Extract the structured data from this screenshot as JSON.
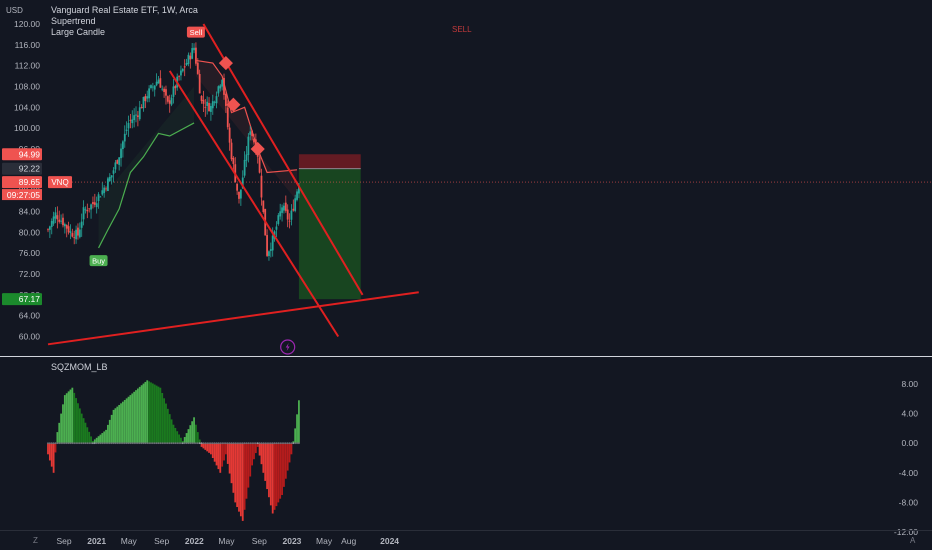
{
  "currency": "USD",
  "legend": {
    "symbol_line": "Vanguard Real Estate ETF, 1W, Arca",
    "indicator_1": "Supertrend",
    "indicator_2": "Large Candle"
  },
  "oscillator": {
    "title": "SQZMOM_LB"
  },
  "corner_left": "Z",
  "corner_right": "A",
  "colors": {
    "background": "#131722",
    "up": "#26a69a",
    "down": "#ef5350",
    "trendline": "#e02020",
    "supertrend_up": "#4caf50",
    "supertrend_down": "#ef5350",
    "target_zone": "#1b5e20",
    "stop_zone": "#7f1d24",
    "mom_strong_up": "#4caf50",
    "mom_weak_up": "#1b7a1f",
    "mom_strong_down": "#b71c1c",
    "mom_weak_down": "#e53935"
  },
  "icons": {
    "bolt": "lightning-bolt-icon"
  },
  "chart_data": [
    {
      "type": "candlestick",
      "title": "Vanguard Real Estate ETF, 1W, Arca",
      "ylabel": "USD",
      "ylim": [
        58,
        122
      ],
      "y_ticks": [
        "120.00",
        "116.00",
        "112.00",
        "108.00",
        "104.00",
        "100.00",
        "96.00",
        "92.00",
        "88.00",
        "84.00",
        "80.00",
        "76.00",
        "72.00",
        "68.00",
        "64.00",
        "60.00"
      ],
      "x_ticks": [
        "Sep",
        "2021",
        "May",
        "Sep",
        "2022",
        "May",
        "Sep",
        "2023",
        "May",
        "Aug",
        "2024"
      ],
      "close_path": [
        {
          "date": "2020-07-03",
          "close": 80.5
        },
        {
          "date": "2020-07-31",
          "close": 83.5
        },
        {
          "date": "2020-08-28",
          "close": 82.0
        },
        {
          "date": "2020-09-25",
          "close": 80.0
        },
        {
          "date": "2020-10-23",
          "close": 79.5
        },
        {
          "date": "2020-11-13",
          "close": 84.0
        },
        {
          "date": "2020-12-18",
          "close": 85.5
        },
        {
          "date": "2021-01-22",
          "close": 88.0
        },
        {
          "date": "2021-02-26",
          "close": 91.0
        },
        {
          "date": "2021-03-26",
          "close": 95.0
        },
        {
          "date": "2021-04-30",
          "close": 101.0
        },
        {
          "date": "2021-06-04",
          "close": 103.0
        },
        {
          "date": "2021-07-09",
          "close": 106.5
        },
        {
          "date": "2021-08-20",
          "close": 109.5
        },
        {
          "date": "2021-09-24",
          "close": 104.5
        },
        {
          "date": "2021-10-29",
          "close": 109.0
        },
        {
          "date": "2021-12-31",
          "close": 115.5
        },
        {
          "date": "2022-01-28",
          "close": 105.0
        },
        {
          "date": "2022-03-04",
          "close": 104.0
        },
        {
          "date": "2022-04-15",
          "close": 110.0
        },
        {
          "date": "2022-05-13",
          "close": 97.0
        },
        {
          "date": "2022-06-17",
          "close": 86.0
        },
        {
          "date": "2022-07-29",
          "close": 100.0
        },
        {
          "date": "2022-08-26",
          "close": 95.0
        },
        {
          "date": "2022-09-30",
          "close": 76.0
        },
        {
          "date": "2022-10-21",
          "close": 78.5
        },
        {
          "date": "2022-11-25",
          "close": 85.0
        },
        {
          "date": "2022-12-23",
          "close": 82.0
        },
        {
          "date": "2023-01-27",
          "close": 89.65
        }
      ],
      "last_price": {
        "symbol": "VNQ",
        "price": "89.65",
        "countdown": "09:27:05"
      },
      "price_labels": {
        "stop": "94.99",
        "entry": "92.22",
        "target": "67.17"
      },
      "position": {
        "entry": 92.22,
        "stop": 94.99,
        "target": 67.17,
        "start_date": "2023-01-27",
        "end_date": "2023-09-15"
      },
      "trendlines": [
        {
          "points": [
            {
              "date": "2021-10-01",
              "price": 111.0
            },
            {
              "date": "2023-06-23",
              "price": 60.0
            }
          ]
        },
        {
          "points": [
            {
              "date": "2022-02-04",
              "price": 120.0
            },
            {
              "date": "2023-09-22",
              "price": 68.0
            }
          ]
        },
        {
          "points": [
            {
              "date": "2020-07-03",
              "price": 58.5
            },
            {
              "date": "2024-04-19",
              "price": 68.5
            }
          ]
        }
      ],
      "supertrend": [
        {
          "date": "2021-01-08",
          "price": 77.0
        },
        {
          "date": "2021-02-12",
          "price": 80.5
        },
        {
          "date": "2021-03-26",
          "price": 84.5
        },
        {
          "date": "2021-05-07",
          "price": 91.5
        },
        {
          "date": "2021-06-25",
          "price": 94.5
        },
        {
          "date": "2021-08-20",
          "price": 99.0
        },
        {
          "date": "2021-10-01",
          "price": 98.5
        },
        {
          "date": "2021-12-31",
          "price": 101.0
        },
        {
          "date": "2022-01-07",
          "price": 113.0
        },
        {
          "date": "2022-03-11",
          "price": 112.5
        },
        {
          "date": "2022-04-15",
          "price": 110.0
        },
        {
          "date": "2022-05-20",
          "price": 103.0
        },
        {
          "date": "2022-07-08",
          "price": 104.0
        },
        {
          "date": "2022-08-26",
          "price": 96.0
        },
        {
          "date": "2022-09-30",
          "price": 91.5
        },
        {
          "date": "2023-01-20",
          "price": 92.0
        }
      ],
      "signals": [
        {
          "label": "Buy",
          "date": "2021-01-08",
          "price": 76.0
        },
        {
          "label": "Sell",
          "date": "2022-01-07",
          "price": 117.0
        }
      ],
      "sell_markers": [
        {
          "date": "2022-04-29",
          "price": 112.5
        },
        {
          "date": "2022-05-27",
          "price": 104.5
        },
        {
          "date": "2022-08-26",
          "price": 96.0
        }
      ],
      "annotation": "SELL",
      "annotation_position": "above",
      "grid": false
    },
    {
      "type": "bar",
      "title": "SQZMOM_LB",
      "ylim": [
        -12,
        10
      ],
      "y_ticks": [
        "8.00",
        "4.00",
        "0.00",
        "-4.00",
        "-8.00",
        "-12.00"
      ],
      "x_range": [
        "2020-07-03",
        "2023-02-03"
      ],
      "momentum_shape": [
        {
          "date": "2020-07-03",
          "value": -1.5
        },
        {
          "date": "2020-07-24",
          "value": -4.0
        },
        {
          "date": "2020-08-07",
          "value": 1.5
        },
        {
          "date": "2020-09-04",
          "value": 6.5
        },
        {
          "date": "2020-10-02",
          "value": 7.5
        },
        {
          "date": "2020-11-06",
          "value": 4.0
        },
        {
          "date": "2020-12-18",
          "value": 0.3
        },
        {
          "date": "2021-02-05",
          "value": 1.8
        },
        {
          "date": "2021-03-05",
          "value": 4.5
        },
        {
          "date": "2021-05-07",
          "value": 6.5
        },
        {
          "date": "2021-07-09",
          "value": 8.5
        },
        {
          "date": "2021-08-27",
          "value": 7.5
        },
        {
          "date": "2021-10-15",
          "value": 2.5
        },
        {
          "date": "2021-11-19",
          "value": 0.3
        },
        {
          "date": "2021-12-31",
          "value": 3.5
        },
        {
          "date": "2022-01-28",
          "value": -0.5
        },
        {
          "date": "2022-03-04",
          "value": -1.5
        },
        {
          "date": "2022-04-08",
          "value": -4.0
        },
        {
          "date": "2022-04-29",
          "value": -1.5
        },
        {
          "date": "2022-06-03",
          "value": -8.0
        },
        {
          "date": "2022-07-01",
          "value": -10.5
        },
        {
          "date": "2022-08-05",
          "value": -3.0
        },
        {
          "date": "2022-08-26",
          "value": -0.5
        },
        {
          "date": "2022-09-16",
          "value": -4.0
        },
        {
          "date": "2022-10-21",
          "value": -9.5
        },
        {
          "date": "2022-11-25",
          "value": -7.0
        },
        {
          "date": "2022-12-30",
          "value": -1.5
        },
        {
          "date": "2023-01-13",
          "value": 2.0
        },
        {
          "date": "2023-01-27",
          "value": 5.8
        }
      ]
    }
  ]
}
